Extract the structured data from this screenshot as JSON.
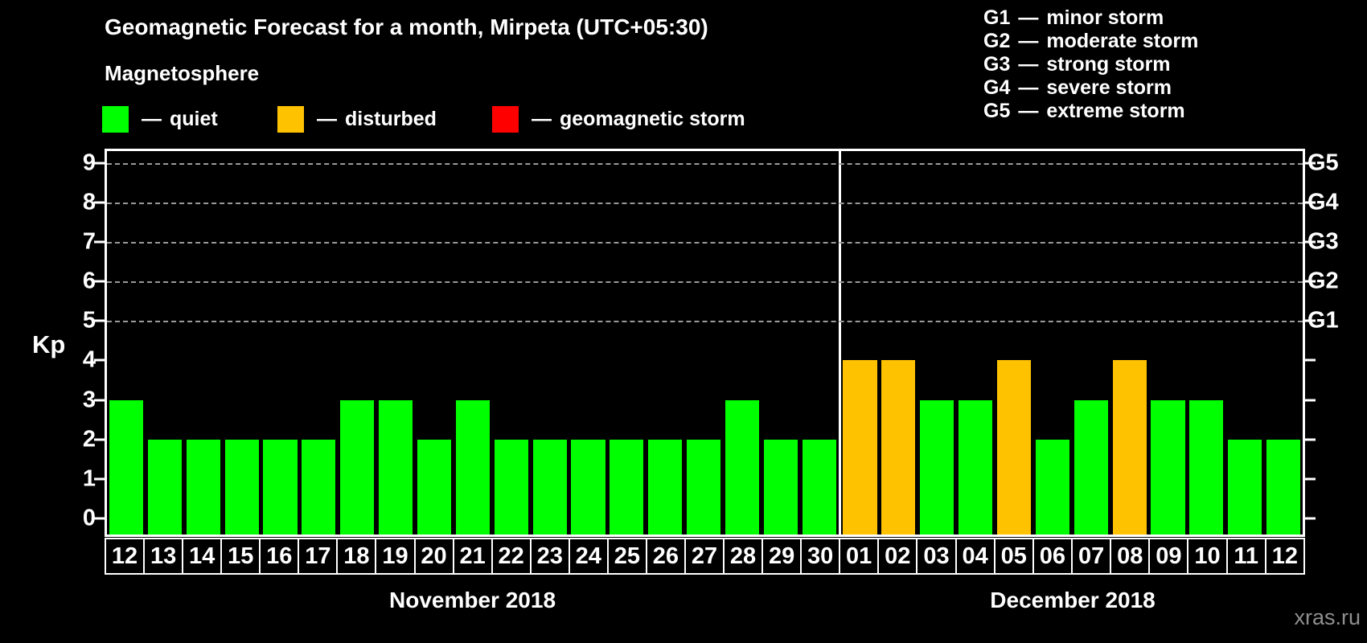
{
  "title": "Geomagnetic Forecast for a month, Mirpeta (UTC+05:30)",
  "subtitle": "Magnetosphere",
  "dash": "—",
  "watermark": "xras.ru",
  "status_legend": [
    {
      "label": "quiet",
      "color": "#00ff00"
    },
    {
      "label": "disturbed",
      "color": "#ffc200"
    },
    {
      "label": "geomagnetic storm",
      "color": "#ff0000"
    }
  ],
  "g_scale_legend": [
    {
      "code": "G1",
      "label": "minor storm"
    },
    {
      "code": "G2",
      "label": "moderate storm"
    },
    {
      "code": "G3",
      "label": "strong storm"
    },
    {
      "code": "G4",
      "label": "severe storm"
    },
    {
      "code": "G5",
      "label": "extreme storm"
    }
  ],
  "chart_data": {
    "type": "bar",
    "title": "Geomagnetic Forecast for a month, Mirpeta (UTC+05:30)",
    "ylabel": "Kp",
    "ylim": [
      0,
      9
    ],
    "yticks": [
      0,
      1,
      2,
      3,
      4,
      5,
      6,
      7,
      8,
      9
    ],
    "gridlines_at": [
      5,
      6,
      7,
      8,
      9
    ],
    "grid": "dashed horizontal at storm levels only",
    "right_axis": [
      {
        "kp": 5,
        "label": "G1"
      },
      {
        "kp": 6,
        "label": "G2"
      },
      {
        "kp": 7,
        "label": "G3"
      },
      {
        "kp": 8,
        "label": "G4"
      },
      {
        "kp": 9,
        "label": "G5"
      }
    ],
    "colors": {
      "quiet": "#00ff00",
      "disturbed": "#ffc200",
      "storm": "#ff0000"
    },
    "months": [
      {
        "label": "November 2018",
        "days": [
          {
            "day": "12",
            "kp": 3,
            "status": "quiet"
          },
          {
            "day": "13",
            "kp": 2,
            "status": "quiet"
          },
          {
            "day": "14",
            "kp": 2,
            "status": "quiet"
          },
          {
            "day": "15",
            "kp": 2,
            "status": "quiet"
          },
          {
            "day": "16",
            "kp": 2,
            "status": "quiet"
          },
          {
            "day": "17",
            "kp": 2,
            "status": "quiet"
          },
          {
            "day": "18",
            "kp": 3,
            "status": "quiet"
          },
          {
            "day": "19",
            "kp": 3,
            "status": "quiet"
          },
          {
            "day": "20",
            "kp": 2,
            "status": "quiet"
          },
          {
            "day": "21",
            "kp": 3,
            "status": "quiet"
          },
          {
            "day": "22",
            "kp": 2,
            "status": "quiet"
          },
          {
            "day": "23",
            "kp": 2,
            "status": "quiet"
          },
          {
            "day": "24",
            "kp": 2,
            "status": "quiet"
          },
          {
            "day": "25",
            "kp": 2,
            "status": "quiet"
          },
          {
            "day": "26",
            "kp": 2,
            "status": "quiet"
          },
          {
            "day": "27",
            "kp": 2,
            "status": "quiet"
          },
          {
            "day": "28",
            "kp": 3,
            "status": "quiet"
          },
          {
            "day": "29",
            "kp": 2,
            "status": "quiet"
          },
          {
            "day": "30",
            "kp": 2,
            "status": "quiet"
          }
        ]
      },
      {
        "label": "December 2018",
        "days": [
          {
            "day": "01",
            "kp": 4,
            "status": "disturbed"
          },
          {
            "day": "02",
            "kp": 4,
            "status": "disturbed"
          },
          {
            "day": "03",
            "kp": 3,
            "status": "quiet"
          },
          {
            "day": "04",
            "kp": 3,
            "status": "quiet"
          },
          {
            "day": "05",
            "kp": 4,
            "status": "disturbed"
          },
          {
            "day": "06",
            "kp": 2,
            "status": "quiet"
          },
          {
            "day": "07",
            "kp": 3,
            "status": "quiet"
          },
          {
            "day": "08",
            "kp": 4,
            "status": "disturbed"
          },
          {
            "day": "09",
            "kp": 3,
            "status": "quiet"
          },
          {
            "day": "10",
            "kp": 3,
            "status": "quiet"
          },
          {
            "day": "11",
            "kp": 2,
            "status": "quiet"
          },
          {
            "day": "12",
            "kp": 2,
            "status": "quiet"
          }
        ]
      }
    ]
  }
}
